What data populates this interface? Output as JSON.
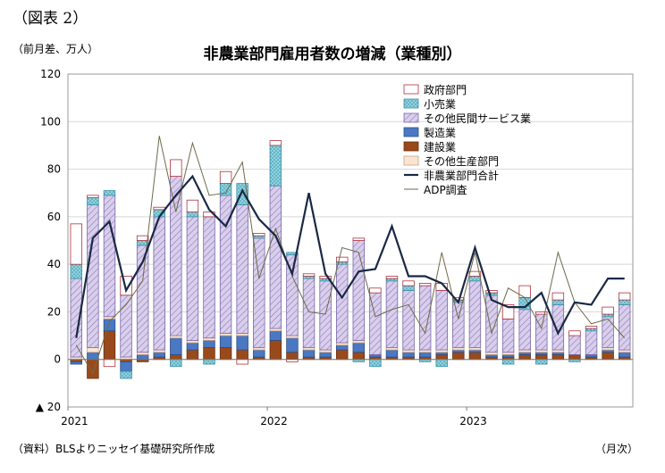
{
  "figure_label": "（図表 2）",
  "unit_label": "（前月差、万人）",
  "source_label": "（資料）BLSよりニッセイ基礎研究所作成",
  "x_unit_label": "（月次）",
  "colors": {
    "government": "#b0303a",
    "retail": "#8ed3e0",
    "other_private_services": "#d9cfec",
    "manufacturing": "#4a78c2",
    "construction": "#9a4a1a",
    "other_goods": "#fbe5d2",
    "nonfarm_total": "#1a2845",
    "adp": "#6f6a4a"
  },
  "chart_data": {
    "type": "bar",
    "title": "非農業部門雇用者数の増減（業種別）",
    "xlabel": "",
    "ylabel": "（前月差、万人）",
    "ylim": [
      -20,
      120
    ],
    "y_ticks": [
      -20,
      0,
      20,
      40,
      60,
      80,
      100,
      120
    ],
    "y_tick_labels": [
      "▲ 20",
      "0",
      "20",
      "40",
      "60",
      "80",
      "100",
      "120"
    ],
    "x_tick_labels": [
      {
        "label": "2021",
        "index": 0
      },
      {
        "label": "2022",
        "index": 12
      },
      {
        "label": "2023",
        "index": 24
      }
    ],
    "grid": true,
    "legend_position": "top-right",
    "categories": [
      "2021-01",
      "2021-02",
      "2021-03",
      "2021-04",
      "2021-05",
      "2021-06",
      "2021-07",
      "2021-08",
      "2021-09",
      "2021-10",
      "2021-11",
      "2021-12",
      "2022-01",
      "2022-02",
      "2022-03",
      "2022-04",
      "2022-05",
      "2022-06",
      "2022-07",
      "2022-08",
      "2022-09",
      "2022-10",
      "2022-11",
      "2022-12",
      "2023-01",
      "2023-02",
      "2023-03",
      "2023-04",
      "2023-05",
      "2023-06",
      "2023-07",
      "2023-08",
      "2023-09",
      "2023-10"
    ],
    "series": [
      {
        "name": "政府部門",
        "key": "government",
        "stack": true,
        "values": [
          17,
          1,
          -3,
          8,
          2,
          1,
          7,
          5,
          2,
          5,
          -2,
          1,
          2,
          -1,
          1,
          1,
          2,
          1,
          2,
          1,
          2,
          1,
          3,
          1,
          2,
          1,
          6,
          5,
          1,
          3,
          2,
          1,
          3,
          3
        ]
      },
      {
        "name": "小売業",
        "key": "retail",
        "stack": true,
        "values": [
          6,
          3,
          2,
          -3,
          2,
          3,
          -3,
          2,
          -2,
          5,
          9,
          1,
          17,
          1,
          1,
          1,
          1,
          -1,
          -3,
          1,
          2,
          -1,
          -3,
          1,
          2,
          1,
          -2,
          5,
          -2,
          2,
          -1,
          1,
          1,
          2
        ]
      },
      {
        "name": "その他民間サービス業",
        "key": "other_private_services",
        "stack": true,
        "values": [
          33,
          60,
          51,
          26,
          45,
          56,
          67,
          52,
          51,
          58,
          54,
          46,
          60,
          34,
          29,
          29,
          33,
          42,
          26,
          28,
          25,
          27,
          25,
          19,
          28,
          24,
          14,
          17,
          15,
          19,
          8,
          10,
          13,
          19
        ]
      },
      {
        "name": "製造業",
        "key": "manufacturing",
        "stack": true,
        "values": [
          -1,
          3,
          5,
          -4,
          2,
          2,
          7,
          3,
          3,
          5,
          6,
          3,
          4,
          6,
          3,
          2,
          2,
          4,
          1,
          3,
          2,
          2,
          1,
          1,
          1,
          1,
          1,
          1,
          1,
          1,
          0,
          1,
          1,
          2
        ]
      },
      {
        "name": "建設業",
        "key": "construction",
        "stack": true,
        "values": [
          -1,
          -8,
          12,
          -1,
          -1,
          1,
          2,
          4,
          5,
          5,
          4,
          1,
          8,
          3,
          1,
          1,
          4,
          3,
          1,
          1,
          1,
          1,
          2,
          3,
          3,
          1,
          1,
          2,
          2,
          2,
          2,
          1,
          3,
          1
        ]
      },
      {
        "name": "その他生産部門",
        "key": "other_goods",
        "stack": true,
        "values": [
          1,
          2,
          1,
          1,
          1,
          1,
          1,
          1,
          1,
          1,
          1,
          1,
          1,
          1,
          1,
          1,
          1,
          1,
          0,
          1,
          1,
          1,
          1,
          1,
          1,
          1,
          1,
          1,
          1,
          1,
          0,
          0,
          1,
          1
        ]
      },
      {
        "name": "非農業部門合計",
        "key": "nonfarm_total",
        "stack": false,
        "values": [
          9,
          51,
          58,
          29,
          41,
          60,
          69,
          77,
          63,
          56,
          71,
          59,
          52,
          36,
          70,
          36,
          26,
          37,
          38,
          56,
          35,
          35,
          32,
          24,
          47,
          25,
          22,
          22,
          28,
          11,
          24,
          23,
          34,
          34
        ]
      },
      {
        "name": "ADP調査",
        "key": "adp",
        "stack": false,
        "values": [
          6,
          -6,
          16,
          23,
          33,
          94,
          62,
          91,
          69,
          70,
          83,
          34,
          55,
          35,
          20,
          19,
          47,
          45,
          18,
          21,
          23,
          11,
          45,
          17,
          45,
          11,
          30,
          26,
          13,
          45,
          24,
          15,
          17,
          9
        ]
      }
    ]
  }
}
